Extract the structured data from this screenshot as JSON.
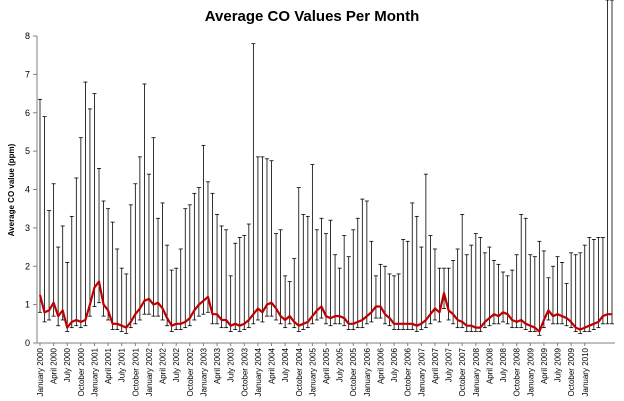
{
  "chart_data": {
    "type": "line",
    "title": "Average CO Values Per Month",
    "ylabel": "Average CO value (ppm)",
    "xlabel": "",
    "ylim": [
      0,
      8
    ],
    "yticks": [
      "0",
      "1",
      "2",
      "3",
      "4",
      "5",
      "6",
      "7",
      "8"
    ],
    "grid": false,
    "legend": "none",
    "x_tick_labels": [
      "January 2000",
      "April 2000",
      "July 2000",
      "October 2000",
      "January 2001",
      "April 2001",
      "July 2001",
      "October 2001",
      "January 2002",
      "April 2002",
      "July 2002",
      "October 2002",
      "January 2003",
      "April 2003",
      "July 2003",
      "October 2003",
      "January 2004",
      "April 2004",
      "July 2004",
      "October 2004",
      "January 2005",
      "April 2005",
      "July 2005",
      "October 2005",
      "January 2006",
      "April 2006",
      "July 2006",
      "October 2006",
      "January 2007",
      "April 2007",
      "July 2007",
      "October 2007",
      "January 2008",
      "April 2008",
      "July 2008",
      "October 2008",
      "January 2009",
      "April 2009",
      "July 2009",
      "October 2009",
      "January 2010"
    ],
    "series": [
      {
        "color": "#c00000",
        "values": [
          1.25,
          0.8,
          0.85,
          1.05,
          0.7,
          0.85,
          0.4,
          0.55,
          0.6,
          0.55,
          0.6,
          1.0,
          1.45,
          1.6,
          1.0,
          0.85,
          0.5,
          0.5,
          0.45,
          0.4,
          0.55,
          0.75,
          0.9,
          1.1,
          1.15,
          1.0,
          1.05,
          0.9,
          0.65,
          0.45,
          0.5,
          0.5,
          0.55,
          0.65,
          0.85,
          1.0,
          1.1,
          1.2,
          0.75,
          0.75,
          0.6,
          0.6,
          0.45,
          0.5,
          0.45,
          0.5,
          0.6,
          0.75,
          0.9,
          0.8,
          1.0,
          1.05,
          0.9,
          0.7,
          0.6,
          0.7,
          0.55,
          0.45,
          0.5,
          0.55,
          0.7,
          0.85,
          0.95,
          0.7,
          0.65,
          0.7,
          0.7,
          0.65,
          0.5,
          0.5,
          0.55,
          0.6,
          0.7,
          0.8,
          0.95,
          0.95,
          0.75,
          0.65,
          0.5,
          0.5,
          0.5,
          0.5,
          0.5,
          0.45,
          0.5,
          0.6,
          0.75,
          0.9,
          0.8,
          1.3,
          0.85,
          0.75,
          0.6,
          0.55,
          0.45,
          0.45,
          0.4,
          0.4,
          0.55,
          0.65,
          0.75,
          0.7,
          0.8,
          0.75,
          0.6,
          0.55,
          0.6,
          0.5,
          0.45,
          0.4,
          0.3,
          0.6,
          0.85,
          0.7,
          0.75,
          0.7,
          0.65,
          0.55,
          0.4,
          0.35,
          0.4,
          0.45,
          0.5,
          0.55,
          0.7,
          0.75,
          0.75
        ]
      }
    ],
    "error_bar_color": "#000000",
    "error_upper": [
      6.35,
      5.9,
      3.45,
      4.15,
      2.5,
      3.05,
      2.1,
      3.3,
      4.3,
      5.35,
      6.8,
      6.1,
      6.5,
      4.55,
      3.7,
      3.5,
      3.15,
      2.45,
      1.95,
      1.8,
      3.6,
      4.15,
      4.85,
      6.75,
      4.4,
      5.35,
      3.25,
      3.65,
      2.55,
      1.9,
      1.95,
      2.45,
      3.5,
      3.6,
      3.9,
      4.05,
      5.15,
      4.2,
      3.9,
      3.35,
      3.05,
      2.95,
      1.75,
      2.6,
      2.75,
      2.8,
      3.1,
      7.8,
      4.85,
      4.85,
      4.8,
      4.75,
      2.85,
      2.95,
      1.75,
      1.6,
      2.2,
      4.05,
      3.35,
      3.3,
      4.65,
      2.95,
      3.25,
      2.85,
      3.2,
      2.3,
      1.95,
      2.8,
      2.25,
      2.95,
      3.25,
      3.75,
      3.7,
      2.65,
      1.75,
      2.05,
      2.0,
      1.8,
      1.75,
      1.8,
      2.7,
      2.65,
      3.65,
      3.3,
      2.5,
      4.4,
      2.8,
      2.45,
      1.95,
      1.95,
      1.95,
      2.15,
      2.45,
      3.35,
      2.3,
      2.55,
      2.85,
      2.75,
      2.35,
      2.5,
      2.15,
      2.05,
      1.85,
      1.75,
      1.9,
      2.3,
      3.35,
      3.25,
      2.3,
      2.25,
      2.65,
      2.4,
      1.7,
      2.0,
      2.25,
      2.1,
      1.55,
      2.35,
      2.3,
      2.35,
      2.55,
      2.75,
      2.7,
      2.75,
      2.75
    ],
    "error_lower": [
      0.8,
      0.55,
      0.6,
      0.7,
      0.45,
      0.6,
      0.3,
      0.4,
      0.45,
      0.4,
      0.45,
      0.7,
      0.95,
      1.05,
      0.7,
      0.6,
      0.35,
      0.35,
      0.3,
      0.25,
      0.4,
      0.5,
      0.6,
      0.75,
      0.75,
      0.7,
      0.7,
      0.6,
      0.45,
      0.3,
      0.35,
      0.35,
      0.4,
      0.45,
      0.6,
      0.7,
      0.75,
      0.8,
      0.5,
      0.5,
      0.4,
      0.4,
      0.3,
      0.35,
      0.3,
      0.35,
      0.4,
      0.5,
      0.6,
      0.55,
      0.7,
      0.7,
      0.6,
      0.5,
      0.4,
      0.5,
      0.4,
      0.3,
      0.35,
      0.4,
      0.5,
      0.6,
      0.65,
      0.5,
      0.45,
      0.5,
      0.5,
      0.45,
      0.35,
      0.35,
      0.4,
      0.4,
      0.5,
      0.55,
      0.65,
      0.65,
      0.5,
      0.45,
      0.35,
      0.35,
      0.35,
      0.35,
      0.35,
      0.3,
      0.35,
      0.4,
      0.5,
      0.6,
      0.55,
      0.9,
      0.6,
      0.5,
      0.4,
      0.4,
      0.3,
      0.3,
      0.3,
      0.3,
      0.4,
      0.45,
      0.5,
      0.5,
      0.55,
      0.5,
      0.4,
      0.4,
      0.4,
      0.35,
      0.3,
      0.3,
      0.2,
      0.4,
      0.6,
      0.5,
      0.5,
      0.5,
      0.45,
      0.4,
      0.3,
      0.25,
      0.3,
      0.3,
      0.35,
      0.4,
      0.5,
      0.5,
      0.5
    ]
  }
}
